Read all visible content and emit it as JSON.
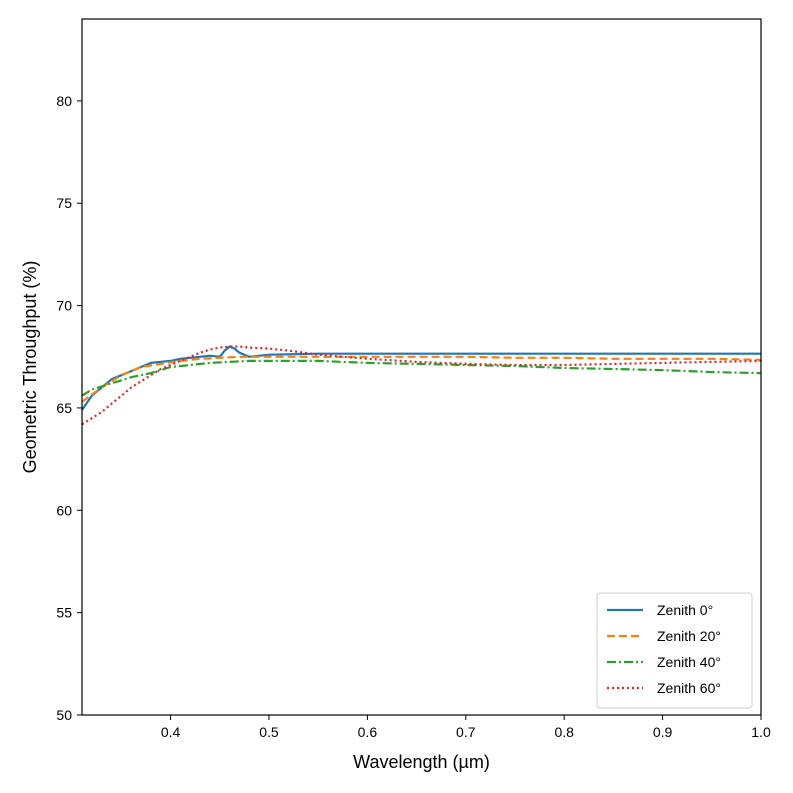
{
  "chart_data": {
    "type": "line",
    "title": "",
    "xlabel": "Wavelength (µm)",
    "ylabel": "Geometric Throughput (%)",
    "xlim": [
      0.31,
      1.0
    ],
    "ylim": [
      50,
      84
    ],
    "xticks": [
      0.4,
      0.5,
      0.6,
      0.7,
      0.8,
      0.9,
      1.0
    ],
    "xtick_labels": [
      "0.4",
      "0.5",
      "0.6",
      "0.7",
      "0.8",
      "0.9",
      "1.0"
    ],
    "yticks": [
      50,
      55,
      60,
      65,
      70,
      75,
      80
    ],
    "ytick_labels": [
      "50",
      "55",
      "60",
      "65",
      "70",
      "75",
      "80"
    ],
    "grid": false,
    "legend_position": "lower-right",
    "series": [
      {
        "name": "Zenith 0°",
        "color": "#1f77b4",
        "style": "solid",
        "x": [
          0.31,
          0.32,
          0.33,
          0.34,
          0.35,
          0.36,
          0.37,
          0.38,
          0.39,
          0.4,
          0.41,
          0.42,
          0.43,
          0.44,
          0.45,
          0.455,
          0.46,
          0.465,
          0.47,
          0.48,
          0.5,
          0.55,
          0.6,
          0.65,
          0.7,
          0.75,
          0.8,
          0.85,
          0.9,
          0.95,
          1.0
        ],
        "y": [
          64.9,
          65.6,
          66.0,
          66.4,
          66.6,
          66.8,
          67.0,
          67.2,
          67.25,
          67.3,
          67.4,
          67.45,
          67.5,
          67.55,
          67.5,
          67.8,
          68.0,
          67.9,
          67.7,
          67.5,
          67.6,
          67.65,
          67.65,
          67.65,
          67.65,
          67.65,
          67.65,
          67.65,
          67.65,
          67.65,
          67.65
        ]
      },
      {
        "name": "Zenith 20°",
        "color": "#ff7f0e",
        "style": "dashed",
        "x": [
          0.31,
          0.33,
          0.35,
          0.37,
          0.39,
          0.41,
          0.43,
          0.45,
          0.47,
          0.5,
          0.55,
          0.6,
          0.65,
          0.7,
          0.75,
          0.8,
          0.85,
          0.9,
          0.95,
          1.0
        ],
        "y": [
          65.3,
          66.0,
          66.6,
          67.0,
          67.15,
          67.3,
          67.4,
          67.45,
          67.5,
          67.5,
          67.5,
          67.5,
          67.5,
          67.5,
          67.45,
          67.45,
          67.4,
          67.4,
          67.4,
          67.35
        ]
      },
      {
        "name": "Zenith 40°",
        "color": "#2ca02c",
        "style": "dashdot",
        "x": [
          0.31,
          0.32,
          0.34,
          0.36,
          0.38,
          0.4,
          0.42,
          0.44,
          0.46,
          0.48,
          0.5,
          0.55,
          0.6,
          0.65,
          0.7,
          0.75,
          0.8,
          0.85,
          0.9,
          0.95,
          1.0
        ],
        "y": [
          65.6,
          65.9,
          66.2,
          66.5,
          66.7,
          67.0,
          67.1,
          67.2,
          67.25,
          67.3,
          67.3,
          67.3,
          67.2,
          67.15,
          67.1,
          67.05,
          66.95,
          66.9,
          66.85,
          66.75,
          66.7
        ]
      },
      {
        "name": "Zenith 60°",
        "color": "#d62728",
        "style": "dotted",
        "x": [
          0.31,
          0.32,
          0.33,
          0.34,
          0.35,
          0.36,
          0.37,
          0.38,
          0.39,
          0.4,
          0.41,
          0.42,
          0.43,
          0.44,
          0.45,
          0.46,
          0.47,
          0.48,
          0.5,
          0.52,
          0.55,
          0.6,
          0.65,
          0.7,
          0.75,
          0.8,
          0.85,
          0.9,
          0.95,
          1.0
        ],
        "y": [
          64.2,
          64.5,
          64.8,
          65.2,
          65.6,
          66.0,
          66.3,
          66.6,
          66.9,
          67.1,
          67.3,
          67.5,
          67.7,
          67.85,
          67.95,
          68.0,
          68.0,
          67.95,
          67.9,
          67.8,
          67.6,
          67.4,
          67.25,
          67.15,
          67.1,
          67.1,
          67.15,
          67.2,
          67.25,
          67.3
        ]
      }
    ]
  }
}
